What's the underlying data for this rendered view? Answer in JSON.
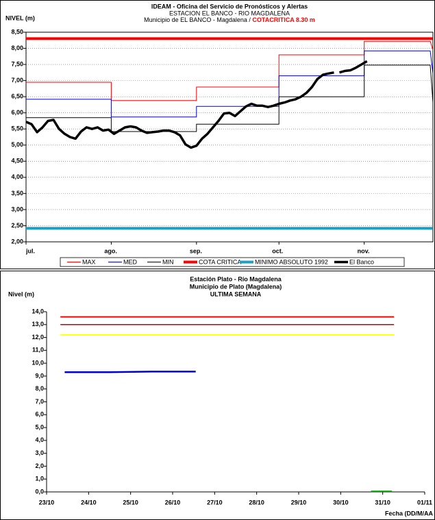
{
  "chart_data": [
    {
      "type": "line",
      "title_lines": [
        "IDEAM - Oficina del Servicio de Pronósticos y Alertas",
        "ESTACION EL BANCO - RIO MAGDALENA"
      ],
      "subtitle": "Municipio de EL BANCO - Magdalena /",
      "annotation": "COTACRITICA 8.30 m",
      "y_label": "NIVEL (m)",
      "xlim": [
        0,
        148
      ],
      "xticks": [
        {
          "value": 0,
          "label": "jul."
        },
        {
          "value": 31,
          "label": "ago."
        },
        {
          "value": 62,
          "label": "sep."
        },
        {
          "value": 92,
          "label": "oct."
        },
        {
          "value": 123,
          "label": "nov."
        }
      ],
      "ylim": [
        2,
        8.5
      ],
      "yticks": [
        {
          "value": 2,
          "label": "2,00"
        },
        {
          "value": 2.5,
          "label": "2,50"
        },
        {
          "value": 3,
          "label": "3,00"
        },
        {
          "value": 3.5,
          "label": "3,50"
        },
        {
          "value": 4,
          "label": "4,00"
        },
        {
          "value": 4.5,
          "label": "4,50"
        },
        {
          "value": 5,
          "label": "5,00"
        },
        {
          "value": 5.5,
          "label": "5,50"
        },
        {
          "value": 6,
          "label": "6,00"
        },
        {
          "value": 6.5,
          "label": "6,50"
        },
        {
          "value": 7,
          "label": "7,00"
        },
        {
          "value": 7.5,
          "label": "7,50"
        },
        {
          "value": 8,
          "label": "8,00"
        },
        {
          "value": 8.5,
          "label": "8,50"
        }
      ],
      "grid": true,
      "legend": "bottom",
      "series": [
        {
          "name": "MAX",
          "color": "#ff0000",
          "x": [
            0,
            31,
            31,
            62,
            62,
            92,
            92,
            123,
            123,
            147,
            148
          ],
          "values": [
            6.95,
            6.95,
            6.38,
            6.38,
            6.8,
            6.8,
            7.8,
            7.8,
            8.22,
            8.22,
            7.95
          ]
        },
        {
          "name": "MED",
          "color": "#0000cc",
          "x": [
            0,
            31,
            31,
            62,
            62,
            92,
            92,
            123,
            123,
            147,
            148
          ],
          "values": [
            6.42,
            6.42,
            5.87,
            5.87,
            6.2,
            6.2,
            7.15,
            7.15,
            7.92,
            7.92,
            7.22
          ]
        },
        {
          "name": "MIN",
          "color": "#000000",
          "x": [
            0,
            31,
            31,
            62,
            62,
            92,
            92,
            123,
            123,
            147,
            148
          ],
          "values": [
            5.85,
            5.85,
            5.42,
            5.42,
            5.65,
            5.65,
            6.5,
            6.5,
            7.48,
            7.48,
            6.32
          ]
        },
        {
          "name": "COTA CRITICA",
          "color": "#ff0000",
          "x": [
            0,
            148
          ],
          "values": [
            8.3,
            8.3
          ]
        },
        {
          "name": "MINIMO ABSOLUTO 1992",
          "color": "#1e9fc8",
          "x": [
            0,
            148
          ],
          "values": [
            2.42,
            2.42
          ]
        },
        {
          "name": "El Banco",
          "color": "#000000",
          "x": [
            0,
            2,
            4,
            6,
            8,
            10,
            12,
            14,
            16,
            18,
            20,
            22,
            24,
            26,
            28,
            30,
            32,
            34,
            36,
            38,
            40,
            42,
            44,
            46,
            48,
            50,
            52,
            54,
            56,
            58,
            60,
            62,
            64,
            66,
            68,
            70,
            72,
            74,
            76,
            78,
            80,
            82,
            84,
            86,
            88,
            90,
            92,
            94,
            96,
            98,
            100,
            102,
            104,
            106,
            108,
            110,
            112,
            113,
            114,
            116,
            118,
            120,
            122,
            124
          ],
          "values": [
            5.72,
            5.65,
            5.4,
            5.55,
            5.75,
            5.78,
            5.5,
            5.35,
            5.25,
            5.2,
            5.42,
            5.55,
            5.5,
            5.55,
            5.45,
            5.48,
            5.35,
            5.45,
            5.55,
            5.58,
            5.55,
            5.45,
            5.38,
            5.4,
            5.42,
            5.45,
            5.45,
            5.4,
            5.3,
            5.02,
            4.92,
            4.98,
            5.2,
            5.35,
            5.55,
            5.75,
            5.98,
            6.0,
            5.9,
            6.05,
            6.2,
            6.28,
            6.22,
            6.22,
            6.18,
            6.22,
            6.28,
            6.32,
            6.38,
            6.42,
            6.5,
            6.62,
            6.8,
            7.05,
            7.18,
            7.22,
            7.25,
            null,
            7.25,
            7.3,
            7.32,
            7.4,
            7.5,
            7.6
          ]
        }
      ]
    },
    {
      "type": "line",
      "title_lines": [
        "Estación Plato - Río Magdalena",
        "Municipio de Plato (Magdalena)",
        "ULTIMA SEMANA"
      ],
      "y_label": "Nivel (m)",
      "x_label": "Fecha (DD/M/AA",
      "xlim": [
        0,
        9
      ],
      "xticks": [
        {
          "value": 0,
          "label": "23/10"
        },
        {
          "value": 1,
          "label": "24/10"
        },
        {
          "value": 2,
          "label": "25/10"
        },
        {
          "value": 3,
          "label": "26/10"
        },
        {
          "value": 4,
          "label": "27/10"
        },
        {
          "value": 5,
          "label": "28/10"
        },
        {
          "value": 6,
          "label": "29/10"
        },
        {
          "value": 7,
          "label": "30/10"
        },
        {
          "value": 8,
          "label": "31/10"
        },
        {
          "value": 9,
          "label": "01/11"
        }
      ],
      "ylim": [
        0,
        14
      ],
      "yticks": [
        {
          "value": 0,
          "label": "0,0"
        },
        {
          "value": 1,
          "label": "1,0"
        },
        {
          "value": 2,
          "label": "2,0"
        },
        {
          "value": 3,
          "label": "3,0"
        },
        {
          "value": 4,
          "label": "4,0"
        },
        {
          "value": 5,
          "label": "5,0"
        },
        {
          "value": 6,
          "label": "6,0"
        },
        {
          "value": 7,
          "label": "7,0"
        },
        {
          "value": 8,
          "label": "8,0"
        },
        {
          "value": 9,
          "label": "9,0"
        },
        {
          "value": 10,
          "label": "10,0"
        },
        {
          "value": 11,
          "label": "11,0"
        },
        {
          "value": 12,
          "label": "12,0"
        },
        {
          "value": 13,
          "label": "13,0"
        },
        {
          "value": 14,
          "label": "14,0"
        }
      ],
      "grid": false,
      "series": [
        {
          "color": "#ff0000",
          "x": [
            0.33,
            8.27
          ],
          "values": [
            13.6,
            13.6
          ]
        },
        {
          "color": "#c00000",
          "x": [
            0.33,
            8.27
          ],
          "values": [
            13.0,
            13.0
          ]
        },
        {
          "color": "#ffff00",
          "x": [
            0.33,
            8.27
          ],
          "values": [
            12.2,
            12.2
          ]
        },
        {
          "color": "#0000cc",
          "x": [
            0.43,
            1.5,
            2.5,
            3.55
          ],
          "values": [
            9.3,
            9.3,
            9.35,
            9.35
          ]
        },
        {
          "color": "#00aa00",
          "x": [
            7.72,
            8.22
          ],
          "values": [
            0.05,
            0.05
          ]
        }
      ]
    }
  ]
}
